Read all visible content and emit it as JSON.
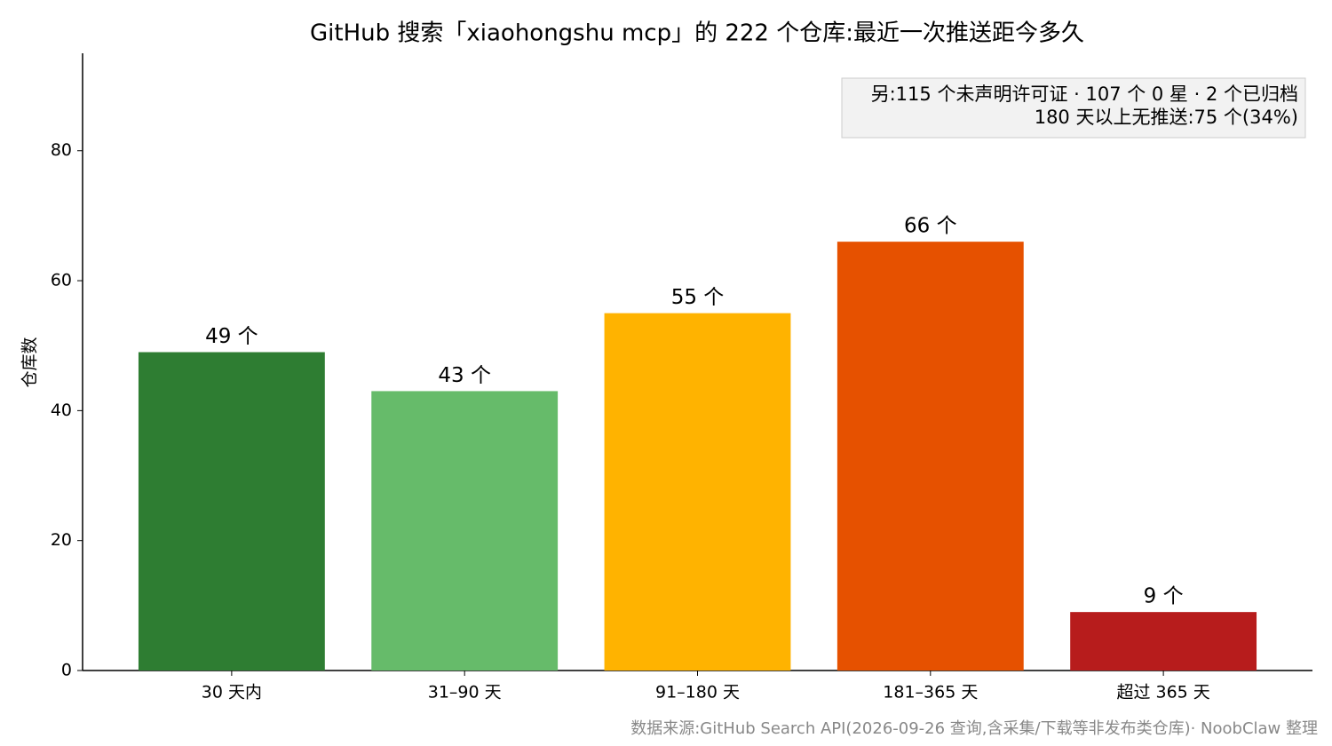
{
  "chart_data": {
    "type": "bar",
    "title": "GitHub 搜索「xiaohongshu mcp」的 222 个仓库:最近一次推送距今多久",
    "y_label": "仓库数",
    "categories": [
      "30 天内",
      "31–90 天",
      "91–180 天",
      "181–365 天",
      "超过 365 天"
    ],
    "values": [
      49,
      43,
      55,
      66,
      9
    ],
    "value_labels": [
      "49 个",
      "43 个",
      "55 个",
      "66 个",
      "9 个"
    ],
    "colors": [
      "#2e7d32",
      "#66bb6a",
      "#ffb300",
      "#e65100",
      "#b71c1c"
    ],
    "ylim": [
      0,
      95
    ],
    "yticks": [
      0,
      20,
      40,
      60,
      80
    ],
    "annotation": [
      "另:115 个未声明许可证 · 107 个 0 星 · 2 个已归档",
      "180 天以上无推送:75 个(34%)"
    ],
    "source": "数据来源:GitHub Search API(2026-09-26 查询,含采集/下载等非发布类仓库)· NoobClaw 整理"
  }
}
